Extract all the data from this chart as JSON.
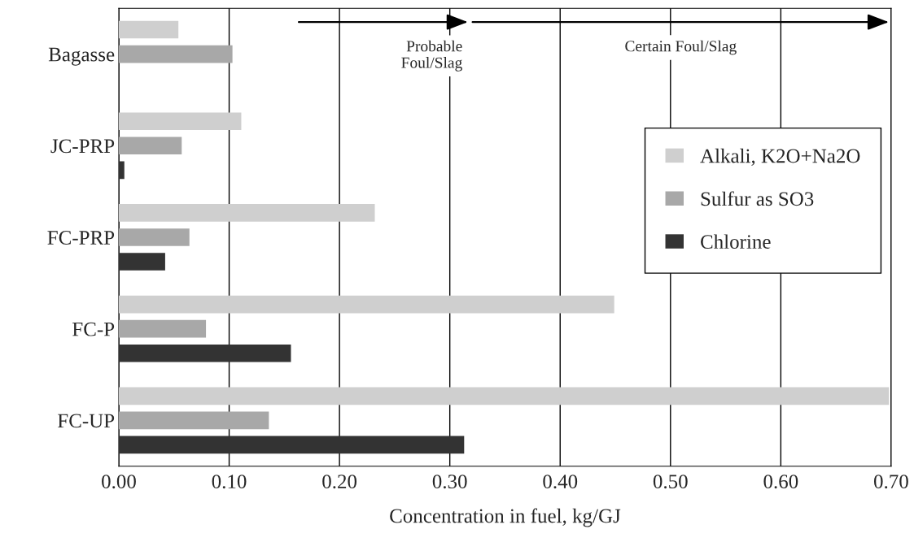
{
  "chart_data": {
    "type": "bar",
    "orientation": "horizontal",
    "xlabel": "Concentration in fuel, kg/GJ",
    "categories": [
      "Bagasse",
      "JC-PRP",
      "FC-PRP",
      "FC-P",
      "FC-UP"
    ],
    "series": [
      {
        "name": "Alkali, K2O+Na2O",
        "color": "#cfcfcf",
        "values": [
          0.054,
          0.111,
          0.232,
          0.449,
          0.698
        ]
      },
      {
        "name": "Sulfur as SO3",
        "color": "#a8a8a8",
        "values": [
          0.103,
          0.057,
          0.064,
          0.079,
          0.136
        ]
      },
      {
        "name": "Chlorine",
        "color": "#333333",
        "values": [
          null,
          0.005,
          0.042,
          0.156,
          0.313
        ]
      }
    ],
    "xlim": [
      0,
      0.7
    ],
    "xticks": [
      {
        "value": 0,
        "label": "0.00"
      },
      {
        "value": 0.1,
        "label": "0.10"
      },
      {
        "value": 0.2,
        "label": "0.20"
      },
      {
        "value": 0.3,
        "label": "0.30"
      },
      {
        "value": 0.4,
        "label": "0.40"
      },
      {
        "value": 0.5,
        "label": "0.50"
      },
      {
        "value": 0.6,
        "label": "0.60"
      },
      {
        "value": 0.7,
        "label": "0.70"
      }
    ],
    "annotations": [
      "Probable\nFoul/Slag",
      "Certain Foul/Slag"
    ],
    "grid": "x",
    "legend": "right"
  }
}
